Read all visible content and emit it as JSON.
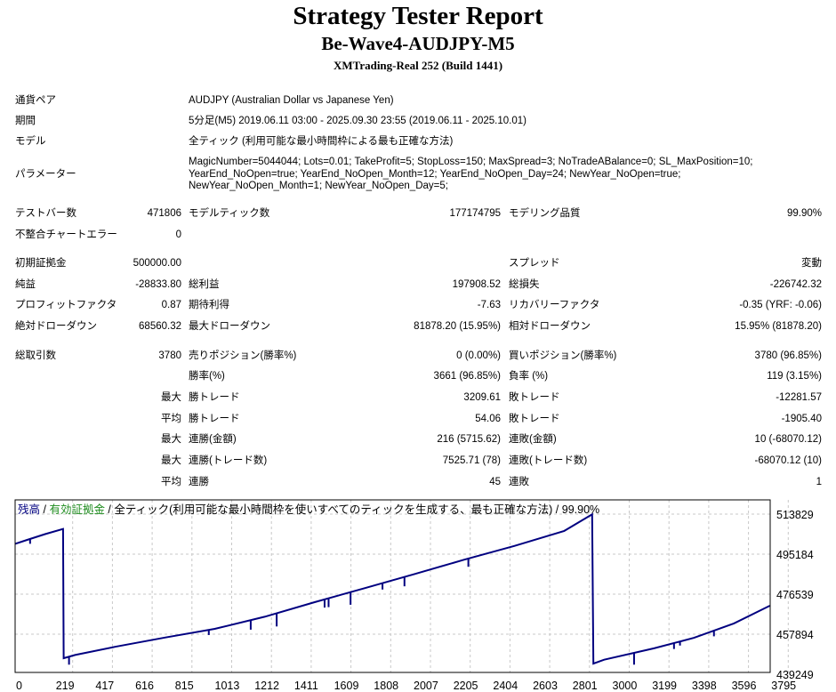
{
  "header": {
    "title": "Strategy Tester Report",
    "subtitle": "Be-Wave4-AUDJPY-M5",
    "server": "XMTrading-Real 252 (Build 1441)"
  },
  "info": {
    "pair_label": "通貨ペア",
    "pair_value": "AUDJPY (Australian Dollar vs Japanese Yen)",
    "period_label": "期間",
    "period_value": "5分足(M5) 2019.06.11 03:00 - 2025.09.30 23:55 (2019.06.11 - 2025.10.01)",
    "model_label": "モデル",
    "model_value": "全ティック (利用可能な最小時間枠による最も正確な方法)",
    "params_label": "パラメーター",
    "params_value": "MagicNumber=5044044; Lots=0.01; TakeProfit=5; StopLoss=150; MaxSpread=3; NoTradeABalance=0; SL_MaxPosition=10;\nYearEnd_NoOpen=true; YearEnd_NoOpen_Month=12; YearEnd_NoOpen_Day=24; NewYear_NoOpen=true;\nNewYear_NoOpen_Month=1; NewYear_NoOpen_Day=5;"
  },
  "stats": {
    "bars_label": "テストバー数",
    "bars": "471806",
    "ticks_label": "モデルティック数",
    "ticks": "177174795",
    "quality_label": "モデリング品質",
    "quality": "99.90%",
    "mismatch_label": "不整合チャートエラー",
    "mismatch": "0",
    "deposit_label": "初期証拠金",
    "deposit": "500000.00",
    "spread_label": "スプレッド",
    "spread": "変動",
    "net_label": "純益",
    "net": "-28833.80",
    "gross_profit_label": "総利益",
    "gross_profit": "197908.52",
    "gross_loss_label": "総損失",
    "gross_loss": "-226742.32",
    "pf_label": "プロフィットファクタ",
    "pf": "0.87",
    "expected_label": "期待利得",
    "expected": "-7.63",
    "recovery_label": "リカバリーファクタ",
    "recovery": "-0.35 (YRF: -0.06)",
    "abs_dd_label": "絶対ドローダウン",
    "abs_dd": "68560.32",
    "max_dd_label": "最大ドローダウン",
    "max_dd": "81878.20 (15.95%)",
    "rel_dd_label": "相対ドローダウン",
    "rel_dd": "15.95% (81878.20)",
    "trades_label": "総取引数",
    "trades": "3780",
    "short_label": "売りポジション(勝率%)",
    "short": "0 (0.00%)",
    "long_label": "買いポジション(勝率%)",
    "long": "3780 (96.85%)",
    "win_label": "勝率(%)",
    "win": "3661 (96.85%)",
    "loss_label": "負率 (%)",
    "loss": "119 (3.15%)",
    "max_word": "最大",
    "avg_word": "平均",
    "win_trade_label": "勝トレード",
    "loss_trade_label": "敗トレード",
    "largest_win": "3209.61",
    "largest_loss": "-12281.57",
    "avg_win": "54.06",
    "avg_loss": "-1905.40",
    "cons_win_amt_label": "連勝(金額)",
    "cons_win_amt": "216 (5715.62)",
    "cons_loss_amt_label": "連敗(金額)",
    "cons_loss_amt": "10 (-68070.12)",
    "cons_win_cnt_label": "連勝(トレード数)",
    "cons_win_cnt": "7525.71 (78)",
    "cons_loss_cnt_label": "連敗(トレード数)",
    "cons_loss_cnt": "-68070.12 (10)",
    "avg_cons_win_label": "連勝",
    "avg_cons_win": "45",
    "avg_cons_loss_label": "連敗",
    "avg_cons_loss": "1"
  },
  "chart_data": {
    "type": "line",
    "legend": {
      "balance": "残高",
      "sep": " / ",
      "equity": "有効証拠金",
      "rest": " / 全ティック(利用可能な最小時間枠を使いすべてのティックを生成する、最も正確な方法) / 99.90%"
    },
    "colors": {
      "balance": "#000080",
      "equity": "#1e8c1e",
      "grid": "#c8c8c8",
      "frame": "#000000"
    },
    "grid": true,
    "x_ticks": [
      "0",
      "219",
      "417",
      "616",
      "815",
      "1013",
      "1212",
      "1411",
      "1609",
      "1808",
      "2007",
      "2205",
      "2404",
      "2603",
      "2801",
      "3000",
      "3199",
      "3398",
      "3596",
      "3795"
    ],
    "y_ticks": [
      "513829",
      "495184",
      "476539",
      "457894",
      "439249"
    ],
    "series": [
      {
        "name": "残高",
        "points": [
          [
            0,
            500000
          ],
          [
            60,
            501800
          ],
          [
            150,
            504500
          ],
          [
            240,
            506900
          ],
          [
            243,
            446700
          ],
          [
            300,
            448200
          ],
          [
            500,
            452000
          ],
          [
            750,
            456300
          ],
          [
            1000,
            460400
          ],
          [
            1250,
            466000
          ],
          [
            1500,
            472800
          ],
          [
            1750,
            479300
          ],
          [
            2000,
            485900
          ],
          [
            2250,
            492600
          ],
          [
            2500,
            499000
          ],
          [
            2750,
            506000
          ],
          [
            2890,
            513700
          ],
          [
            2896,
            444200
          ],
          [
            2950,
            446000
          ],
          [
            3200,
            451300
          ],
          [
            3400,
            456200
          ],
          [
            3600,
            462900
          ],
          [
            3780,
            471166
          ]
        ]
      }
    ],
    "drawdown_spikes": [
      [
        75,
        500000
      ],
      [
        270,
        443700
      ],
      [
        970,
        457500
      ],
      [
        1180,
        460000
      ],
      [
        1310,
        461500
      ],
      [
        1550,
        470300
      ],
      [
        1570,
        470500
      ],
      [
        1680,
        471600
      ],
      [
        1840,
        478700
      ],
      [
        1950,
        480200
      ],
      [
        2270,
        489300
      ],
      [
        3100,
        443700
      ],
      [
        3300,
        451000
      ],
      [
        3330,
        452600
      ],
      [
        3500,
        456900
      ]
    ]
  }
}
